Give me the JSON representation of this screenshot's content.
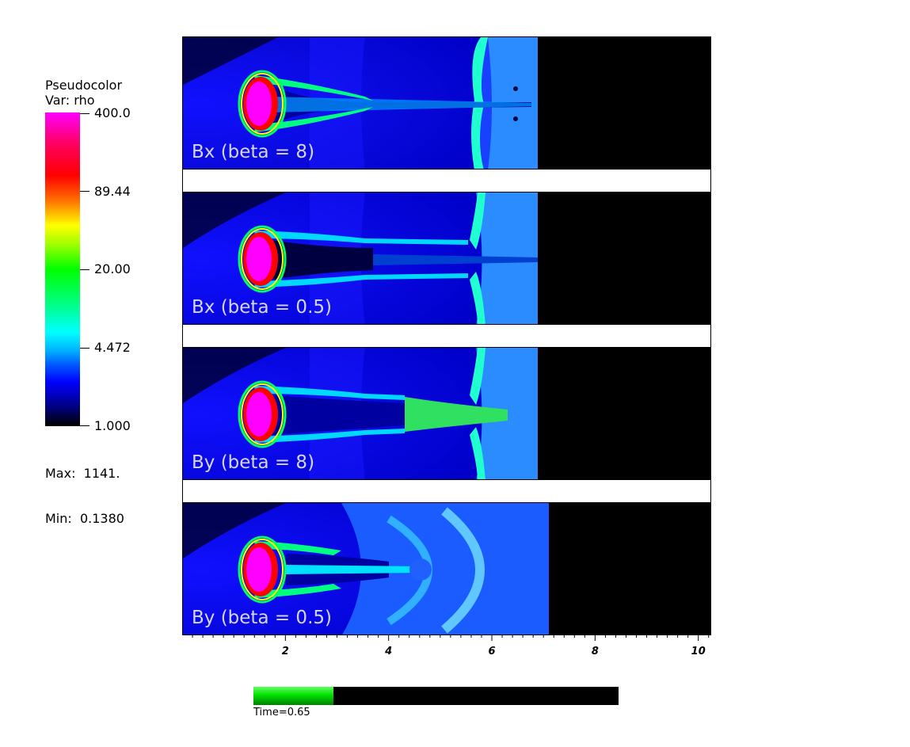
{
  "legend": {
    "title_line1": "Pseudocolor",
    "title_line2": "Var: rho",
    "ticks": [
      "400.0",
      "89.44",
      "20.00",
      "4.472",
      "1.000"
    ],
    "max_label": "Max:  1141.",
    "min_label": "Min:  0.1380"
  },
  "panels": [
    {
      "label": "Bx (beta = 8)"
    },
    {
      "label": "Bx (beta = 0.5)"
    },
    {
      "label": "By (beta = 8)"
    },
    {
      "label": "By (beta = 0.5)"
    }
  ],
  "x_axis": {
    "tick_labels": [
      "2",
      "4",
      "6",
      "8",
      "10"
    ],
    "range": [
      0,
      10.25
    ]
  },
  "time": {
    "label": "Time=0.65",
    "progress": 0.22,
    "bar_color": "#00e000"
  },
  "colors": {
    "low": "#000000",
    "mid": "#0000ff",
    "high": "#ff00ff"
  }
}
